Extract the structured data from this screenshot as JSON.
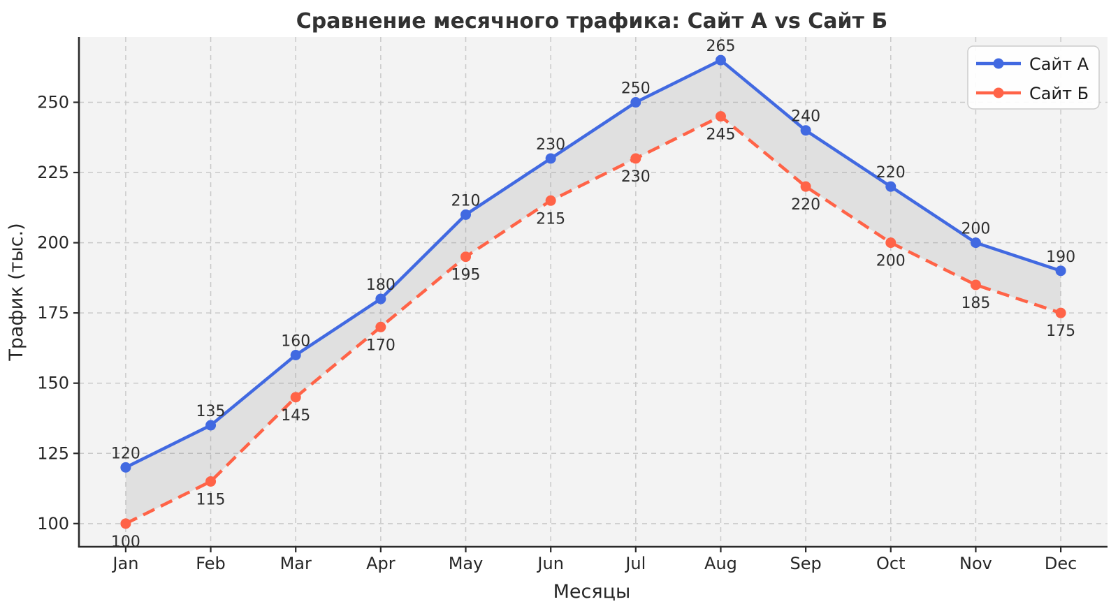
{
  "chart_data": {
    "type": "line",
    "title": "Сравнение месячного трафика: Сайт А vs Сайт Б",
    "xlabel": "Месяцы",
    "ylabel": "Трафик (тыс.)",
    "categories": [
      "Jan",
      "Feb",
      "Mar",
      "Apr",
      "May",
      "Jun",
      "Jul",
      "Aug",
      "Sep",
      "Oct",
      "Nov",
      "Dec"
    ],
    "series": [
      {
        "name": "Сайт А",
        "values": [
          120,
          135,
          160,
          180,
          210,
          230,
          250,
          265,
          240,
          220,
          200,
          190
        ],
        "color": "#4169E1",
        "line_style": "solid",
        "marker": "circle",
        "label_position": "above"
      },
      {
        "name": "Сайт Б",
        "values": [
          100,
          115,
          145,
          170,
          195,
          215,
          230,
          245,
          220,
          200,
          185,
          175
        ],
        "color": "#FF6347",
        "line_style": "dashed",
        "marker": "circle",
        "label_position": "below"
      }
    ],
    "yticks": [
      100,
      125,
      150,
      175,
      200,
      225,
      250
    ],
    "ylim": [
      91.75,
      273.25
    ],
    "xlim": [
      -0.55,
      11.55
    ],
    "grid": {
      "visible": true,
      "style": "dashed",
      "color": "#c9c9c9"
    },
    "plot_background": "#f3f3f3",
    "figure_background": "#ffffff",
    "spine_color": "#2a2a2a",
    "fill_between": {
      "color": "#8a8a8a",
      "opacity": 0.18
    },
    "point_labels_visible": true,
    "legend": {
      "position": "upper-right",
      "entries": [
        "Сайт А",
        "Сайт Б"
      ],
      "border_color": "#cccccc",
      "background": "#ffffff"
    }
  }
}
